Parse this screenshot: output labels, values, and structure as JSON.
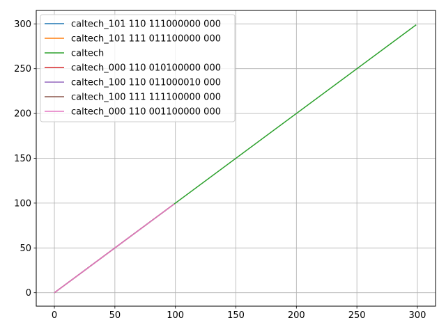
{
  "chart_data": {
    "type": "line",
    "title": "",
    "xlabel": "",
    "ylabel": "",
    "xlim": [
      -15,
      315
    ],
    "ylim": [
      -15,
      315
    ],
    "xticks": [
      0,
      50,
      100,
      150,
      200,
      250,
      300
    ],
    "yticks": [
      0,
      50,
      100,
      150,
      200,
      250,
      300
    ],
    "grid": true,
    "legend_position": "top-left",
    "series": [
      {
        "name": "caltech_101 110 111000000 000",
        "color": "#1f77b4",
        "x": [
          0,
          99
        ],
        "y": [
          0,
          99
        ]
      },
      {
        "name": "caltech_101 111 011100000 000",
        "color": "#ff7f0e",
        "x": [
          0,
          99
        ],
        "y": [
          0,
          99
        ]
      },
      {
        "name": "caltech",
        "color": "#2ca02c",
        "x": [
          0,
          299
        ],
        "y": [
          0,
          299
        ]
      },
      {
        "name": "caltech_000 110 010100000 000",
        "color": "#d62728",
        "x": [
          0,
          99
        ],
        "y": [
          0,
          99
        ]
      },
      {
        "name": "caltech_100 110 011000010 000",
        "color": "#9467bd",
        "x": [
          0,
          99
        ],
        "y": [
          0,
          99
        ]
      },
      {
        "name": "caltech_100 111 111100000 000",
        "color": "#8c564b",
        "x": [
          0,
          99
        ],
        "y": [
          0,
          99
        ]
      },
      {
        "name": "caltech_000 110 001100000 000",
        "color": "#e377c2",
        "x": [
          0,
          99
        ],
        "y": [
          0,
          99
        ]
      }
    ]
  }
}
